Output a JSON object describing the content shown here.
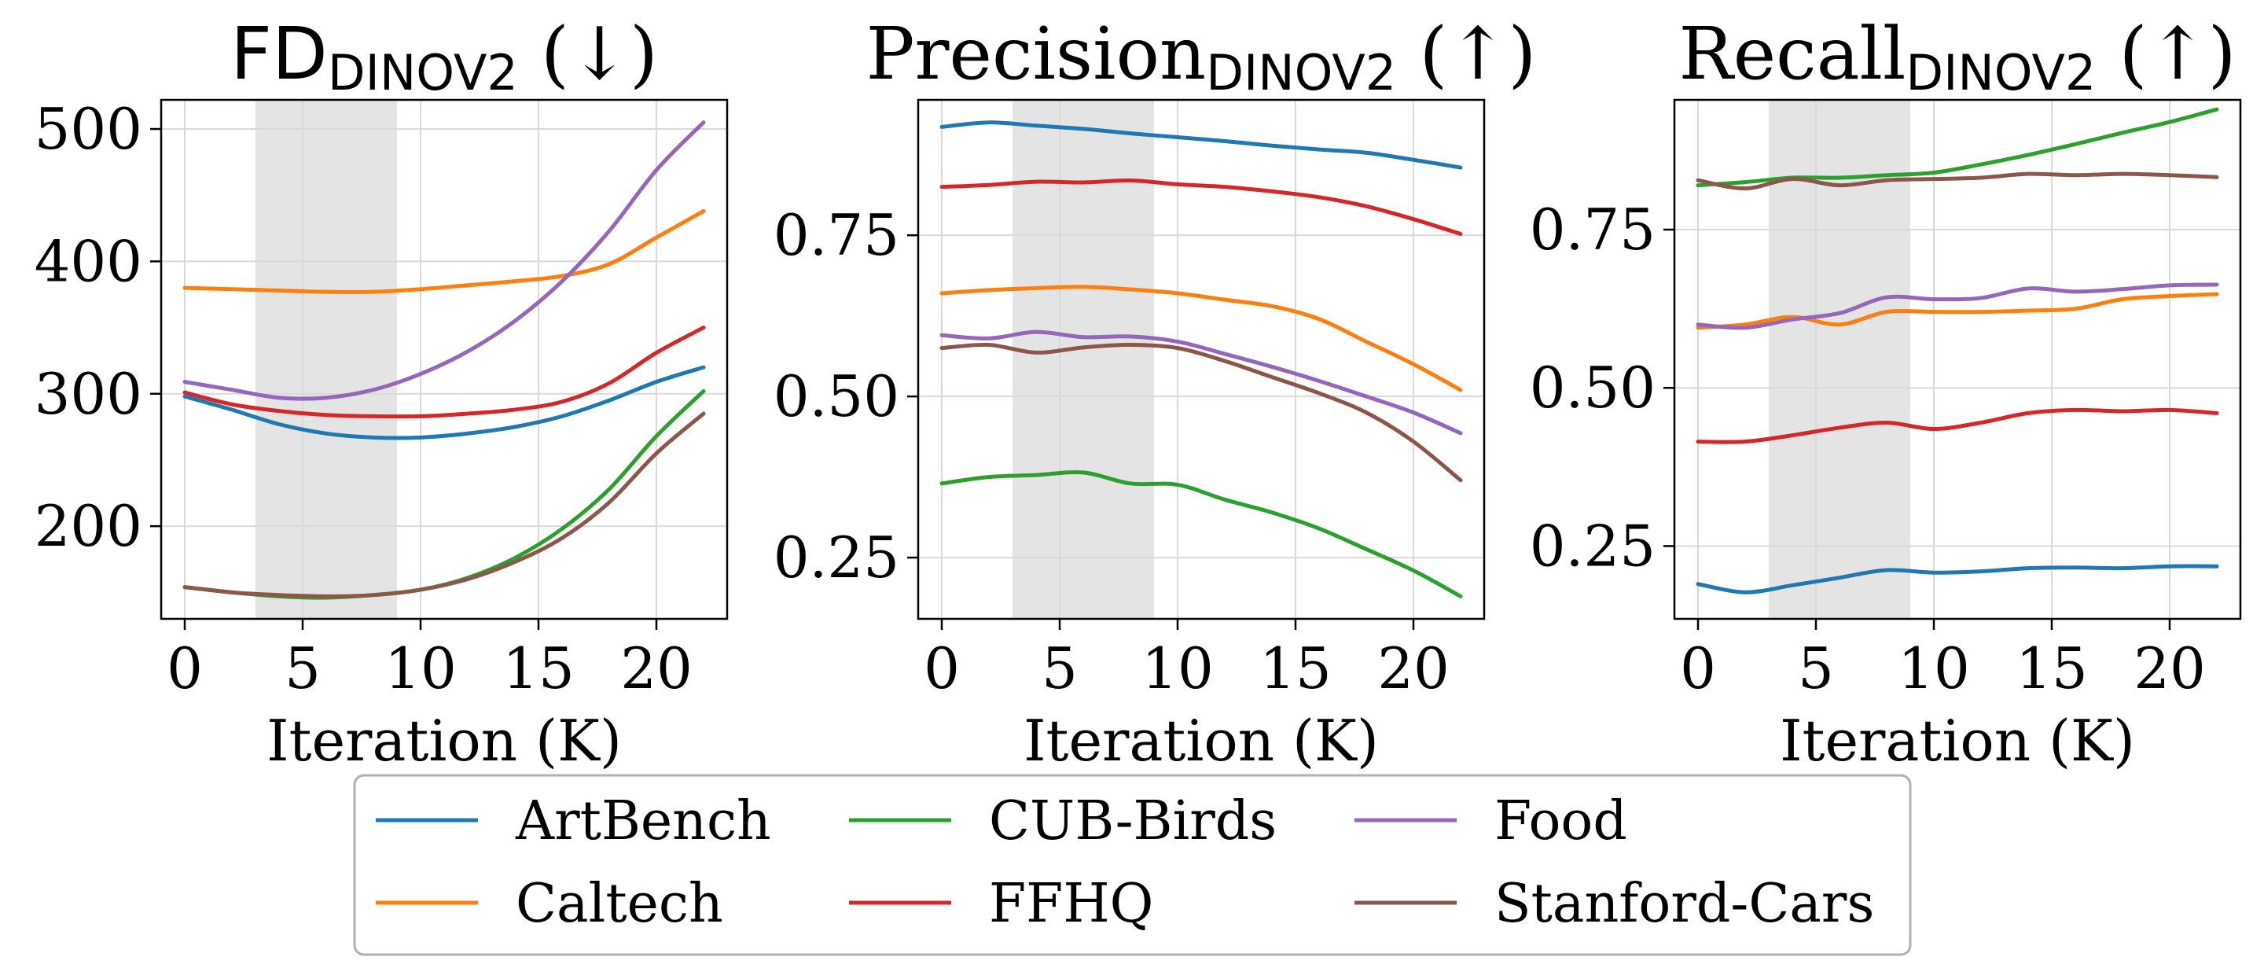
{
  "chart_data": [
    {
      "type": "line",
      "title": "FD",
      "title_sub": "DINOV2",
      "title_arrow": "(↓)",
      "xlabel": "Iteration (K)",
      "ylabel": "",
      "xlim": [
        -1,
        23
      ],
      "ylim": [
        130,
        522
      ],
      "xticks": [
        0,
        5,
        10,
        15,
        20
      ],
      "yticks": [
        200,
        300,
        400,
        500
      ],
      "shaded_x": [
        3,
        9
      ],
      "grid": true,
      "x": [
        0,
        2,
        4,
        6,
        8,
        10,
        12,
        14,
        16,
        18,
        20,
        22
      ],
      "series": [
        {
          "name": "ArtBench",
          "values": [
            298,
            288,
            277,
            270,
            267,
            267,
            270,
            275,
            283,
            295,
            309,
            320
          ]
        },
        {
          "name": "Caltech",
          "values": [
            380,
            379,
            378,
            377,
            377,
            379,
            382,
            385,
            389,
            398,
            418,
            438
          ]
        },
        {
          "name": "CUB-Birds",
          "values": [
            154,
            150,
            147,
            146,
            148,
            152,
            161,
            176,
            198,
            228,
            268,
            302
          ]
        },
        {
          "name": "FFHQ",
          "values": [
            301,
            292,
            287,
            284,
            283,
            283,
            285,
            288,
            294,
            308,
            331,
            350
          ]
        },
        {
          "name": "Food",
          "values": [
            309,
            303,
            297,
            297,
            303,
            315,
            332,
            355,
            385,
            423,
            469,
            505
          ]
        },
        {
          "name": "Stanford-Cars",
          "values": [
            154,
            150,
            148,
            147,
            148,
            152,
            160,
            173,
            191,
            218,
            255,
            285
          ]
        }
      ]
    },
    {
      "type": "line",
      "title": "Precision",
      "title_sub": "DINOV2",
      "title_arrow": "(↑)",
      "xlabel": "Iteration (K)",
      "ylabel": "",
      "xlim": [
        -1,
        23
      ],
      "ylim": [
        0.155,
        0.96
      ],
      "xticks": [
        0,
        5,
        10,
        15,
        20
      ],
      "yticks": [
        0.25,
        0.5,
        0.75
      ],
      "ytick_labels": [
        "0.25",
        "0.50",
        "0.75"
      ],
      "shaded_x": [
        3,
        9
      ],
      "grid": true,
      "x": [
        0,
        2,
        4,
        6,
        8,
        10,
        12,
        14,
        16,
        18,
        20,
        22
      ],
      "series": [
        {
          "name": "ArtBench",
          "values": [
            0.918,
            0.925,
            0.92,
            0.915,
            0.908,
            0.902,
            0.896,
            0.889,
            0.883,
            0.878,
            0.867,
            0.855
          ]
        },
        {
          "name": "Caltech",
          "values": [
            0.66,
            0.665,
            0.668,
            0.67,
            0.666,
            0.66,
            0.65,
            0.64,
            0.62,
            0.585,
            0.55,
            0.51
          ]
        },
        {
          "name": "CUB-Birds",
          "values": [
            0.365,
            0.375,
            0.378,
            0.382,
            0.365,
            0.363,
            0.34,
            0.32,
            0.295,
            0.263,
            0.23,
            0.19
          ]
        },
        {
          "name": "FFHQ",
          "values": [
            0.825,
            0.828,
            0.833,
            0.832,
            0.835,
            0.829,
            0.825,
            0.818,
            0.809,
            0.795,
            0.775,
            0.752
          ]
        },
        {
          "name": "Food",
          "values": [
            0.595,
            0.59,
            0.6,
            0.592,
            0.593,
            0.585,
            0.566,
            0.546,
            0.524,
            0.5,
            0.475,
            0.443
          ]
        },
        {
          "name": "Stanford-Cars",
          "values": [
            0.575,
            0.58,
            0.568,
            0.576,
            0.58,
            0.575,
            0.555,
            0.53,
            0.505,
            0.475,
            0.43,
            0.37
          ]
        }
      ]
    },
    {
      "type": "line",
      "title": "Recall",
      "title_sub": "DINOV2",
      "title_arrow": "(↑)",
      "xlabel": "Iteration (K)",
      "ylabel": "",
      "xlim": [
        -1,
        23
      ],
      "ylim": [
        0.135,
        0.955
      ],
      "xticks": [
        0,
        5,
        10,
        15,
        20
      ],
      "yticks": [
        0.25,
        0.5,
        0.75
      ],
      "ytick_labels": [
        "0.25",
        "0.50",
        "0.75"
      ],
      "shaded_x": [
        3,
        9
      ],
      "grid": true,
      "x": [
        0,
        2,
        4,
        6,
        8,
        10,
        12,
        14,
        16,
        18,
        20,
        22
      ],
      "series": [
        {
          "name": "ArtBench",
          "values": [
            0.19,
            0.177,
            0.188,
            0.2,
            0.212,
            0.208,
            0.21,
            0.215,
            0.216,
            0.215,
            0.218,
            0.218
          ]
        },
        {
          "name": "Caltech",
          "values": [
            0.595,
            0.6,
            0.612,
            0.6,
            0.62,
            0.62,
            0.62,
            0.622,
            0.625,
            0.64,
            0.645,
            0.648
          ]
        },
        {
          "name": "CUB-Birds",
          "values": [
            0.82,
            0.825,
            0.832,
            0.832,
            0.836,
            0.84,
            0.853,
            0.868,
            0.885,
            0.903,
            0.92,
            0.94
          ]
        },
        {
          "name": "FFHQ",
          "values": [
            0.415,
            0.415,
            0.425,
            0.437,
            0.445,
            0.435,
            0.445,
            0.46,
            0.465,
            0.463,
            0.465,
            0.46
          ]
        },
        {
          "name": "Food",
          "values": [
            0.6,
            0.595,
            0.608,
            0.618,
            0.643,
            0.64,
            0.642,
            0.657,
            0.652,
            0.656,
            0.662,
            0.663
          ]
        },
        {
          "name": "Stanford-Cars",
          "values": [
            0.828,
            0.815,
            0.83,
            0.82,
            0.828,
            0.83,
            0.832,
            0.838,
            0.836,
            0.838,
            0.836,
            0.833
          ]
        }
      ]
    }
  ],
  "colors": {
    "ArtBench": "#1f77b4",
    "Caltech": "#ff7f0e",
    "CUB-Birds": "#2ca02c",
    "FFHQ": "#d62728",
    "Food": "#9467bd",
    "Stanford-Cars": "#8c564b",
    "shade": "#e4e4e4",
    "grid": "#d9d9d9"
  },
  "legend": {
    "location": "bottom-center",
    "items": [
      "ArtBench",
      "Caltech",
      "CUB-Birds",
      "FFHQ",
      "Food",
      "Stanford-Cars"
    ]
  }
}
